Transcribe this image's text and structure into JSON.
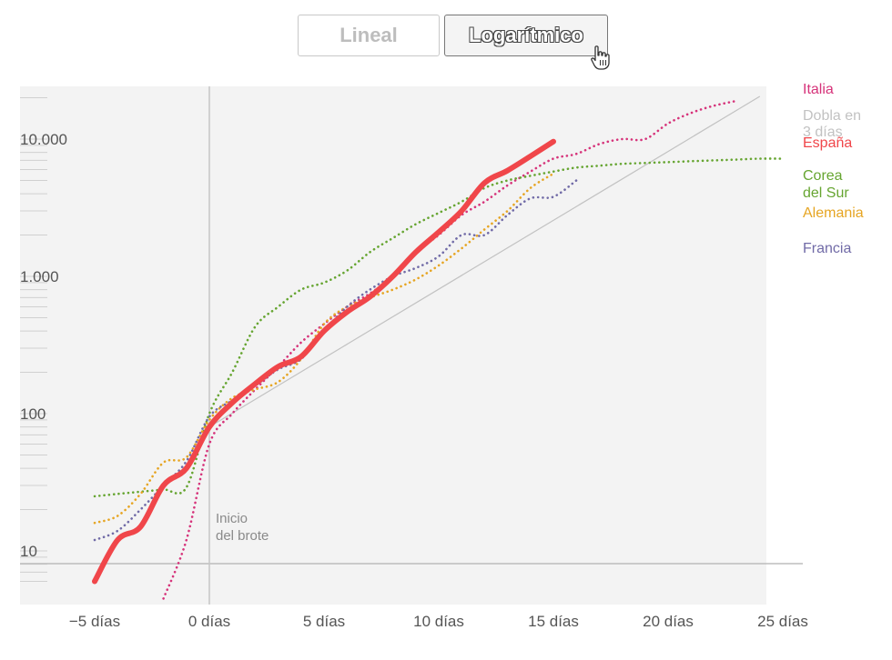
{
  "toggle": {
    "options": [
      "Lineal",
      "Logarítmico"
    ],
    "selected": "Logarítmico"
  },
  "chart_data": {
    "type": "line",
    "title": "",
    "xlabel": "",
    "ylabel": "",
    "y_scale": "log",
    "xlim": [
      -5,
      25
    ],
    "ylim": [
      5.4,
      25000
    ],
    "x_ticks": [
      -5,
      0,
      5,
      10,
      15,
      20,
      25
    ],
    "x_tick_labels": [
      "−5 días",
      "0 días",
      "5 días",
      "10 días",
      "15 días",
      "20 días",
      "25 días"
    ],
    "y_ticks": [
      10,
      100,
      1000,
      10000
    ],
    "y_tick_labels": [
      "10",
      "100",
      "1.000",
      "10.000"
    ],
    "grid": false,
    "legend": "right",
    "annotation": {
      "x": 0,
      "lines": [
        "Inicio",
        "del brote"
      ]
    },
    "reference": {
      "name": "Dobla en 3 días",
      "color": "#c2c2c2",
      "x": [
        0,
        24
      ],
      "y": [
        80,
        20480
      ]
    },
    "series": [
      {
        "name": "España",
        "color": "#f0464a",
        "style": "solid",
        "x": [
          -5,
          -4,
          -3,
          -2,
          -1,
          0,
          1,
          2,
          3,
          4,
          5,
          6,
          7,
          8,
          9,
          10,
          11,
          12,
          13,
          14,
          15
        ],
        "y": [
          6,
          12,
          15,
          30,
          40,
          80,
          120,
          165,
          220,
          260,
          400,
          550,
          710,
          1000,
          1500,
          2100,
          3000,
          4800,
          5900,
          7500,
          9600
        ]
      },
      {
        "name": "Italia",
        "color": "#d6337a",
        "style": "dotted",
        "x": [
          -2,
          -1,
          0,
          1,
          2,
          3,
          4,
          5,
          6,
          7,
          8,
          9,
          10,
          11,
          12,
          13,
          14,
          15,
          16,
          17,
          18,
          19,
          20,
          21,
          22,
          23
        ],
        "y": [
          4.5,
          12,
          60,
          100,
          150,
          220,
          330,
          450,
          600,
          750,
          1000,
          1500,
          2000,
          2800,
          3500,
          4600,
          5800,
          7200,
          7800,
          9200,
          10000,
          10000,
          13000,
          15500,
          17500,
          19000
        ]
      },
      {
        "name": "Corea del Sur",
        "color": "#66a531",
        "style": "dotted",
        "x": [
          -5,
          -4,
          -3,
          -2,
          -1,
          0,
          1,
          2,
          3,
          4,
          5,
          6,
          7,
          8,
          9,
          10,
          11,
          12,
          13,
          14,
          15,
          16,
          17,
          18,
          19,
          20,
          21,
          22,
          23,
          24,
          25
        ],
        "y": [
          25,
          26,
          27,
          28,
          29,
          100,
          200,
          430,
          600,
          800,
          900,
          1100,
          1500,
          1900,
          2400,
          2900,
          3500,
          4400,
          5000,
          5400,
          5800,
          6200,
          6400,
          6600,
          6700,
          6800,
          6900,
          7000,
          7100,
          7200,
          7200
        ]
      },
      {
        "name": "Alemania",
        "color": "#e6a523",
        "style": "dotted",
        "x": [
          -5,
          -4,
          -3,
          -2,
          -1,
          0,
          1,
          2,
          3,
          4,
          5,
          6,
          7,
          8,
          9,
          10,
          11,
          12,
          13,
          14,
          15
        ],
        "y": [
          16,
          18,
          26,
          44,
          48,
          90,
          130,
          150,
          170,
          250,
          450,
          600,
          700,
          800,
          950,
          1200,
          1600,
          2200,
          3000,
          4400,
          5600
        ]
      },
      {
        "name": "Francia",
        "color": "#716ba7",
        "style": "dotted",
        "x": [
          -5,
          -4,
          -3,
          -2,
          -1,
          0,
          1,
          2,
          3,
          4,
          5,
          6,
          7,
          8,
          9,
          10,
          11,
          12,
          13,
          14,
          15,
          16
        ],
        "y": [
          12,
          14,
          20,
          30,
          45,
          95,
          125,
          160,
          210,
          250,
          400,
          600,
          800,
          1000,
          1150,
          1400,
          2000,
          2000,
          2800,
          3700,
          3800,
          5000
        ]
      }
    ],
    "legend_entries": [
      {
        "lines": [
          "Italia"
        ],
        "color": "#d6337a"
      },
      {
        "lines": [
          "Dobla en",
          "3 días"
        ],
        "color": "#c2c2c2"
      },
      {
        "lines": [
          "España"
        ],
        "color": "#f0464a"
      },
      {
        "lines": [
          "Corea",
          "del Sur"
        ],
        "color": "#66a531"
      },
      {
        "lines": [
          "Alemania"
        ],
        "color": "#e6a523"
      },
      {
        "lines": [
          "Francia"
        ],
        "color": "#716ba7"
      }
    ]
  }
}
